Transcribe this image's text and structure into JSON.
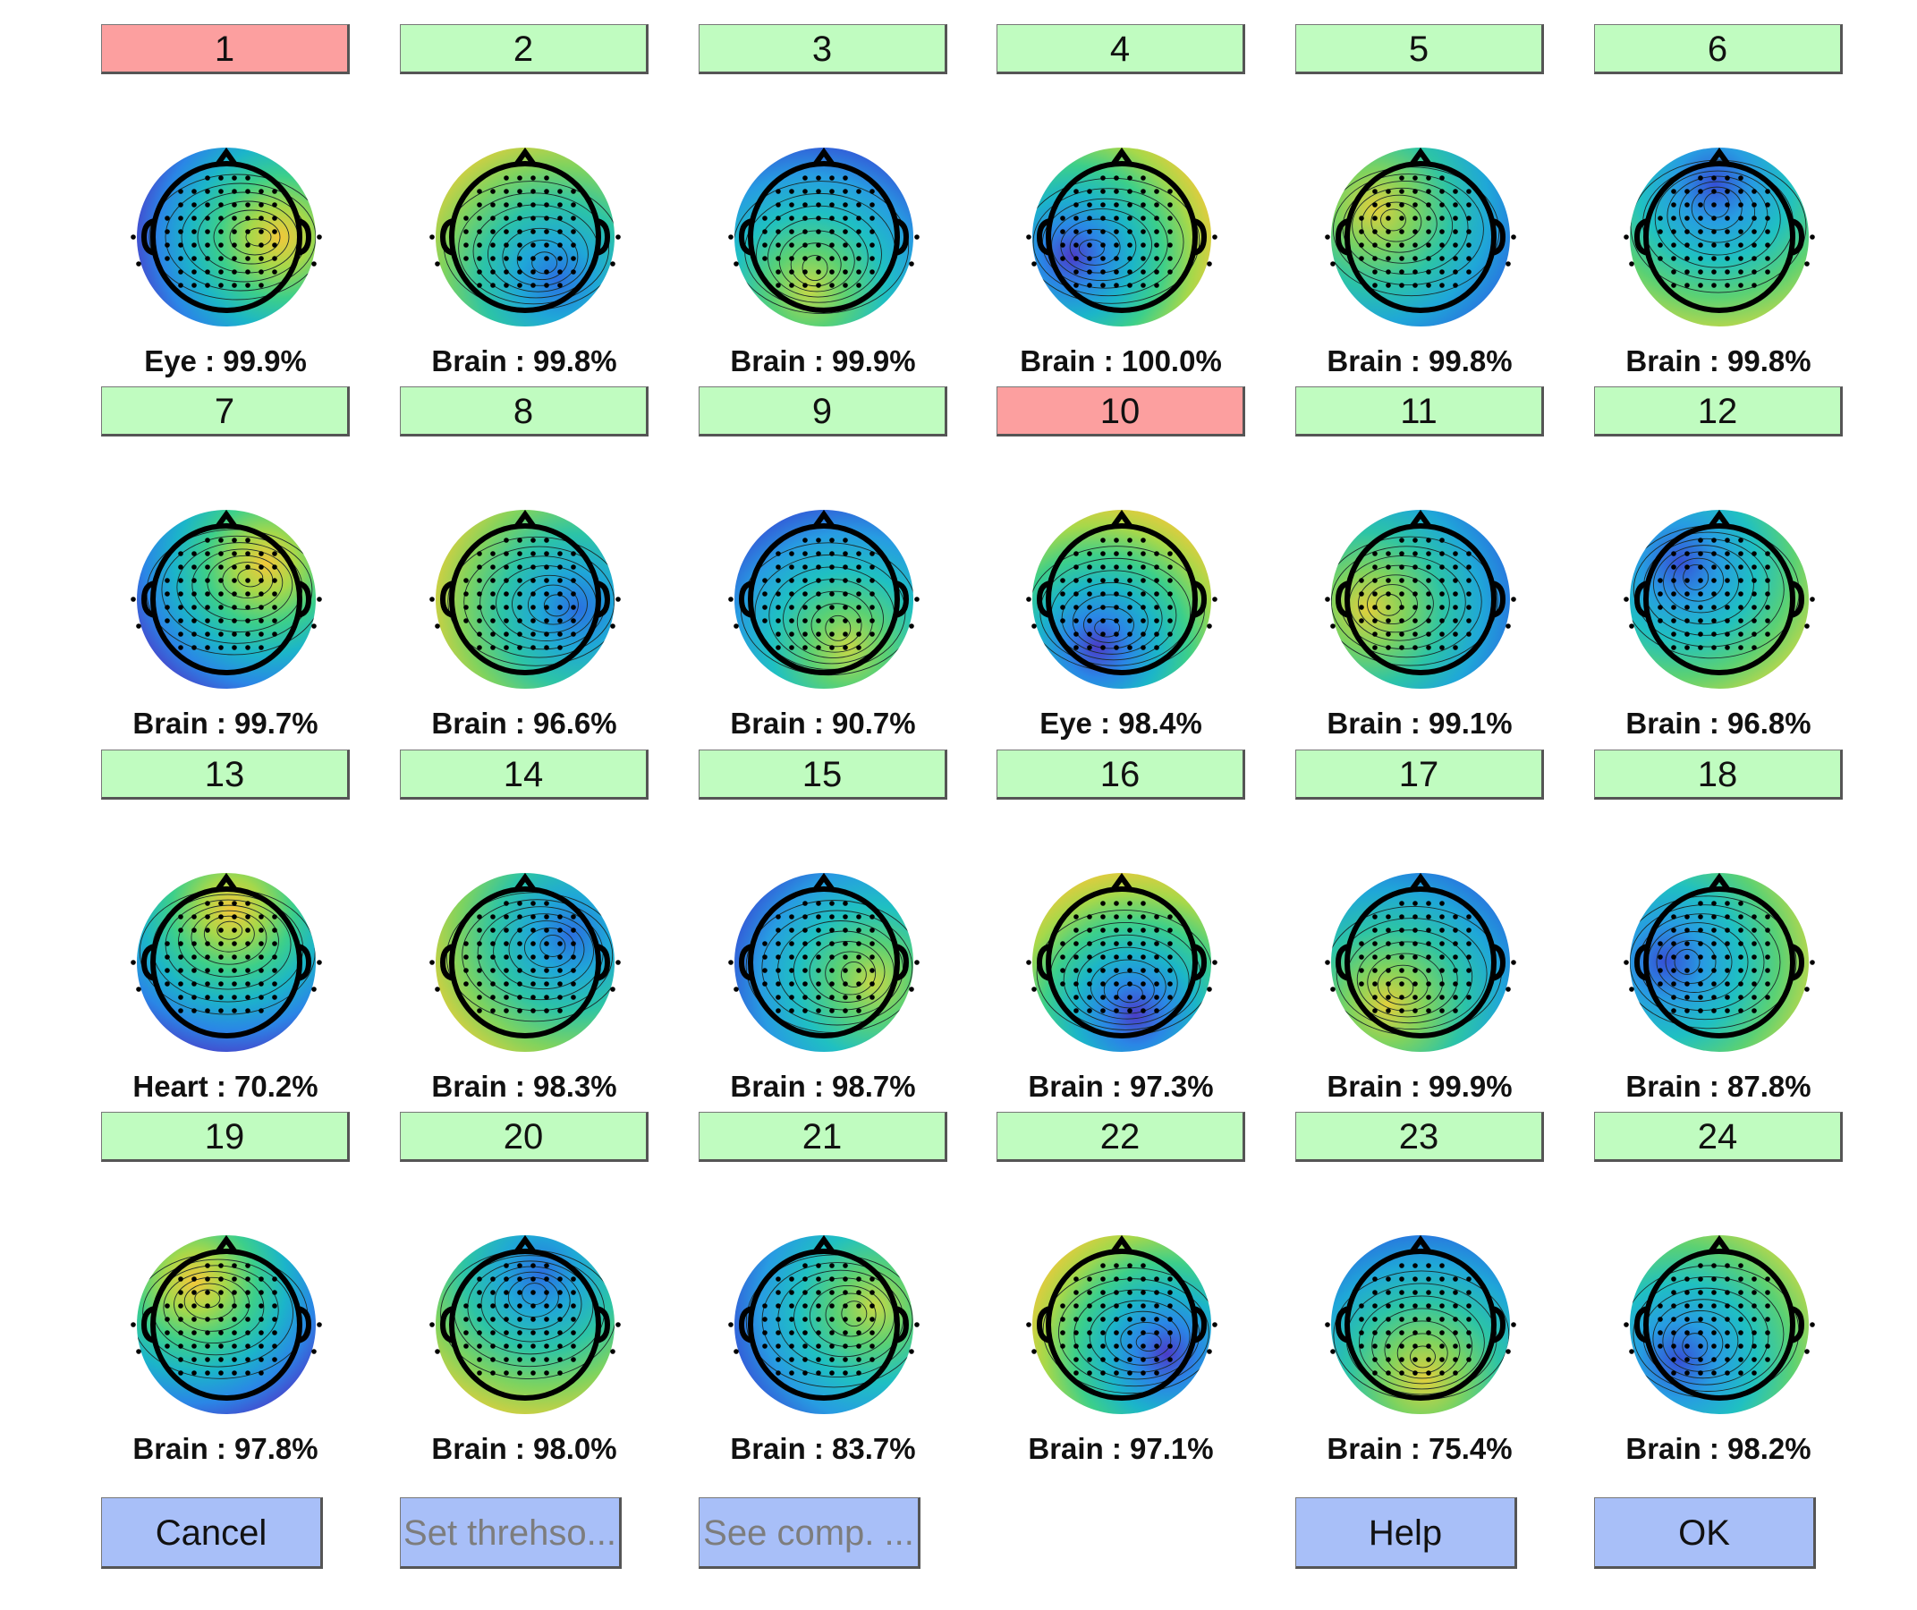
{
  "components": [
    {
      "number": "1",
      "label": "Eye : 99.9%",
      "status": "reject"
    },
    {
      "number": "2",
      "label": "Brain : 99.8%",
      "status": "accept"
    },
    {
      "number": "3",
      "label": "Brain : 99.9%",
      "status": "accept"
    },
    {
      "number": "4",
      "label": "Brain : 100.0%",
      "status": "accept"
    },
    {
      "number": "5",
      "label": "Brain : 99.8%",
      "status": "accept"
    },
    {
      "number": "6",
      "label": "Brain : 99.8%",
      "status": "accept"
    },
    {
      "number": "7",
      "label": "Brain : 99.7%",
      "status": "accept"
    },
    {
      "number": "8",
      "label": "Brain : 96.6%",
      "status": "accept"
    },
    {
      "number": "9",
      "label": "Brain : 90.7%",
      "status": "accept"
    },
    {
      "number": "10",
      "label": "Eye : 98.4%",
      "status": "reject"
    },
    {
      "number": "11",
      "label": "Brain : 99.1%",
      "status": "accept"
    },
    {
      "number": "12",
      "label": "Brain : 96.8%",
      "status": "accept"
    },
    {
      "number": "13",
      "label": "Heart : 70.2%",
      "status": "accept"
    },
    {
      "number": "14",
      "label": "Brain : 98.3%",
      "status": "accept"
    },
    {
      "number": "15",
      "label": "Brain : 98.7%",
      "status": "accept"
    },
    {
      "number": "16",
      "label": "Brain : 97.3%",
      "status": "accept"
    },
    {
      "number": "17",
      "label": "Brain : 99.9%",
      "status": "accept"
    },
    {
      "number": "18",
      "label": "Brain : 87.8%",
      "status": "accept"
    },
    {
      "number": "19",
      "label": "Brain : 97.8%",
      "status": "accept"
    },
    {
      "number": "20",
      "label": "Brain : 98.0%",
      "status": "accept"
    },
    {
      "number": "21",
      "label": "Brain : 83.7%",
      "status": "accept"
    },
    {
      "number": "22",
      "label": "Brain : 97.1%",
      "status": "accept"
    },
    {
      "number": "23",
      "label": "Brain : 75.4%",
      "status": "accept"
    },
    {
      "number": "24",
      "label": "Brain : 98.2%",
      "status": "accept"
    }
  ],
  "buttons": {
    "cancel": "Cancel",
    "set_threshold": "Set threhso...",
    "see_comp": "See comp. ...",
    "help": "Help",
    "ok": "OK"
  },
  "colors": {
    "accept": "#c0fcc0",
    "reject": "#fc9f9f",
    "button": "#a8bff8"
  }
}
